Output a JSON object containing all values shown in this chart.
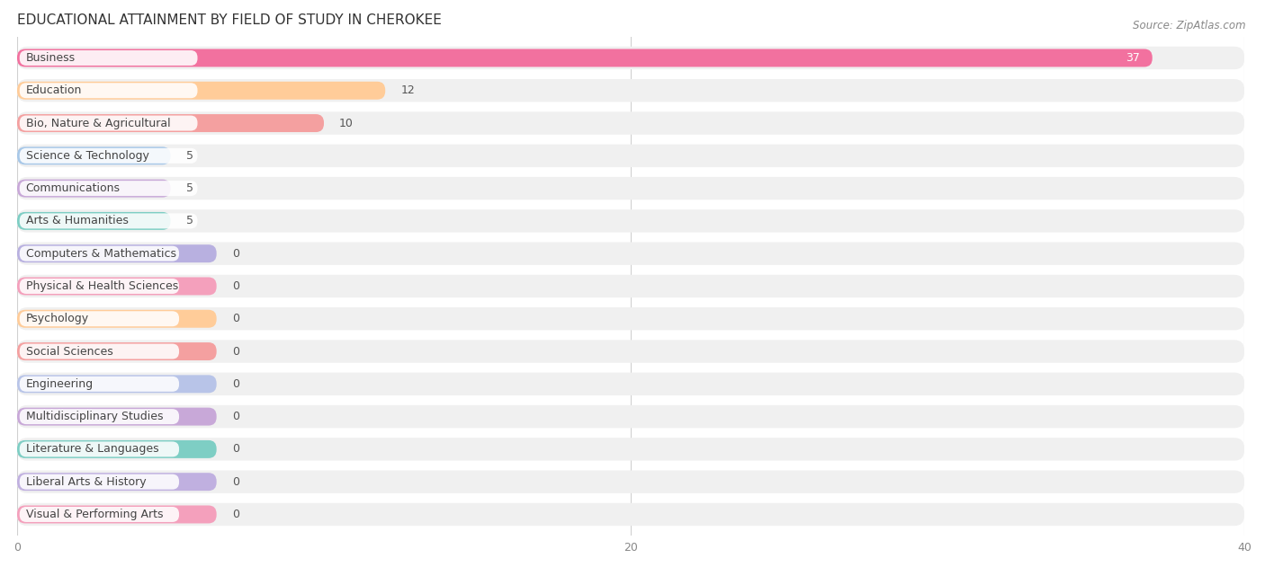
{
  "title": "EDUCATIONAL ATTAINMENT BY FIELD OF STUDY IN CHEROKEE",
  "source": "Source: ZipAtlas.com",
  "categories": [
    "Business",
    "Education",
    "Bio, Nature & Agricultural",
    "Science & Technology",
    "Communications",
    "Arts & Humanities",
    "Computers & Mathematics",
    "Physical & Health Sciences",
    "Psychology",
    "Social Sciences",
    "Engineering",
    "Multidisciplinary Studies",
    "Literature & Languages",
    "Liberal Arts & History",
    "Visual & Performing Arts"
  ],
  "values": [
    37,
    12,
    10,
    5,
    5,
    5,
    0,
    0,
    0,
    0,
    0,
    0,
    0,
    0,
    0
  ],
  "bar_colors": [
    "#F2719F",
    "#FFCC99",
    "#F4A0A0",
    "#A8C8E8",
    "#C8A8D8",
    "#7ECEC4",
    "#B8B0E0",
    "#F4A0BC",
    "#FFCC99",
    "#F4A0A0",
    "#B8C4E8",
    "#C8A8D8",
    "#7ECEC4",
    "#C0B0E0",
    "#F4A0BC"
  ],
  "zero_bar_width": 6.5,
  "xlim": [
    0,
    40
  ],
  "xticks": [
    0,
    20,
    40
  ],
  "background_color": "#ffffff",
  "bar_bg_color": "#f0f0f0",
  "white_label_bg": "#ffffff",
  "title_fontsize": 11,
  "label_fontsize": 9,
  "value_fontsize": 9,
  "source_fontsize": 8.5
}
